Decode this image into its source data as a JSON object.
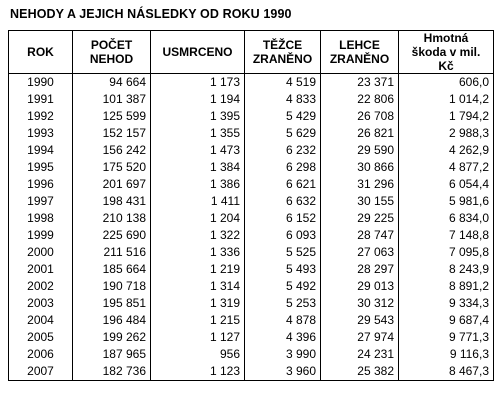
{
  "title": "NEHODY A JEJICH NÁSLEDKY OD ROKU 1990",
  "headers": [
    {
      "l1": "ROK",
      "l2": ""
    },
    {
      "l1": "POČET",
      "l2": "NEHOD"
    },
    {
      "l1": "USMRCENO",
      "l2": ""
    },
    {
      "l1": "TĚŽCE",
      "l2": "ZRANĚNO"
    },
    {
      "l1": "LEHCE",
      "l2": "ZRANĚNO"
    },
    {
      "l1": "Hmotná",
      "l2": "škoda v mil. Kč"
    }
  ],
  "rows": [
    [
      "1990",
      "94 664",
      "1 173",
      "4 519",
      "23 371",
      "606,0"
    ],
    [
      "1991",
      "101 387",
      "1 194",
      "4 833",
      "22 806",
      "1 014,2"
    ],
    [
      "1992",
      "125 599",
      "1 395",
      "5 429",
      "26 708",
      "1 794,2"
    ],
    [
      "1993",
      "152 157",
      "1 355",
      "5 629",
      "26 821",
      "2 988,3"
    ],
    [
      "1994",
      "156 242",
      "1 473",
      "6 232",
      "29 590",
      "4 262,9"
    ],
    [
      "1995",
      "175 520",
      "1 384",
      "6 298",
      "30 866",
      "4 877,2"
    ],
    [
      "1996",
      "201 697",
      "1 386",
      "6 621",
      "31 296",
      "6 054,4"
    ],
    [
      "1997",
      "198 431",
      "1 411",
      "6 632",
      "30 155",
      "5 981,6"
    ],
    [
      "1998",
      "210 138",
      "1 204",
      "6 152",
      "29 225",
      "6 834,0"
    ],
    [
      "1999",
      "225 690",
      "1 322",
      "6 093",
      "28 747",
      "7 148,8"
    ],
    [
      "2000",
      "211 516",
      "1 336",
      "5 525",
      "27 063",
      "7 095,8"
    ],
    [
      "2001",
      "185 664",
      "1 219",
      "5 493",
      "28 297",
      "8 243,9"
    ],
    [
      "2002",
      "190 718",
      "1 314",
      "5 492",
      "29 013",
      "8 891,2"
    ],
    [
      "2003",
      "195 851",
      "1 319",
      "5 253",
      "30 312",
      "9 334,3"
    ],
    [
      "2004",
      "196 484",
      "1 215",
      "4 878",
      "29 543",
      "9 687,4"
    ],
    [
      "2005",
      "199 262",
      "1 127",
      "4 396",
      "27 974",
      "9 771,3"
    ],
    [
      "2006",
      "187 965",
      "956",
      "3 990",
      "24 231",
      "9 116,3"
    ],
    [
      "2007",
      "182 736",
      "1 123",
      "3 960",
      "25 382",
      "8 467,3"
    ]
  ]
}
